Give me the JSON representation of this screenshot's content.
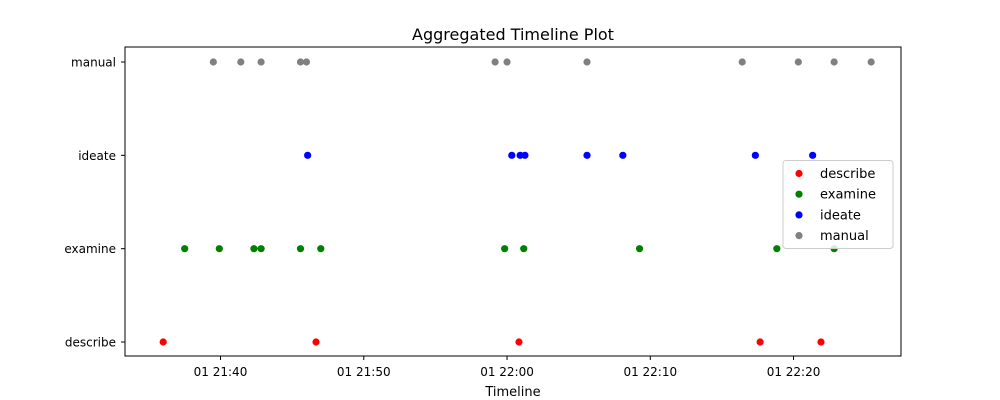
{
  "chart_data": {
    "type": "scatter",
    "title": "Aggregated Timeline Plot",
    "xlabel": "Timeline",
    "ylabel": "",
    "categories": [
      "describe",
      "examine",
      "ideate",
      "manual"
    ],
    "xlim": [
      "01 21:33:20",
      "01 22:27:30"
    ],
    "x_ticks": [
      {
        "value": "01 21:40:00",
        "label": "01 21:40"
      },
      {
        "value": "01 21:50:00",
        "label": "01 21:50"
      },
      {
        "value": "01 22:00:00",
        "label": "01 22:00"
      },
      {
        "value": "01 22:10:00",
        "label": "01 22:10"
      },
      {
        "value": "01 22:20:00",
        "label": "01 22:20"
      }
    ],
    "legend_placement": "center-right",
    "grid": false,
    "series": [
      {
        "name": "describe",
        "color": "#ff0000",
        "category": "describe",
        "x": [
          "01 21:36:00",
          "01 21:46:40",
          "01 22:00:50",
          "01 22:17:40",
          "01 22:21:55"
        ]
      },
      {
        "name": "examine",
        "color": "#008000",
        "category": "examine",
        "x": [
          "01 21:37:30",
          "01 21:39:55",
          "01 21:42:20",
          "01 21:42:50",
          "01 21:45:35",
          "01 21:47:00",
          "01 21:59:50",
          "01 22:01:10",
          "01 22:09:15",
          "01 22:18:50",
          "01 22:22:50"
        ]
      },
      {
        "name": "ideate",
        "color": "#0000ff",
        "category": "ideate",
        "x": [
          "01 21:46:05",
          "01 22:00:20",
          "01 22:00:55",
          "01 22:01:15",
          "01 22:05:35",
          "01 22:08:05",
          "01 22:17:20",
          "01 22:21:20"
        ]
      },
      {
        "name": "manual",
        "color": "#808080",
        "category": "manual",
        "x": [
          "01 21:39:30",
          "01 21:41:25",
          "01 21:42:50",
          "01 21:45:35",
          "01 21:46:00",
          "01 21:59:10",
          "01 22:00:00",
          "01 22:05:35",
          "01 22:16:25",
          "01 22:20:20",
          "01 22:22:50",
          "01 22:25:25"
        ]
      }
    ]
  }
}
